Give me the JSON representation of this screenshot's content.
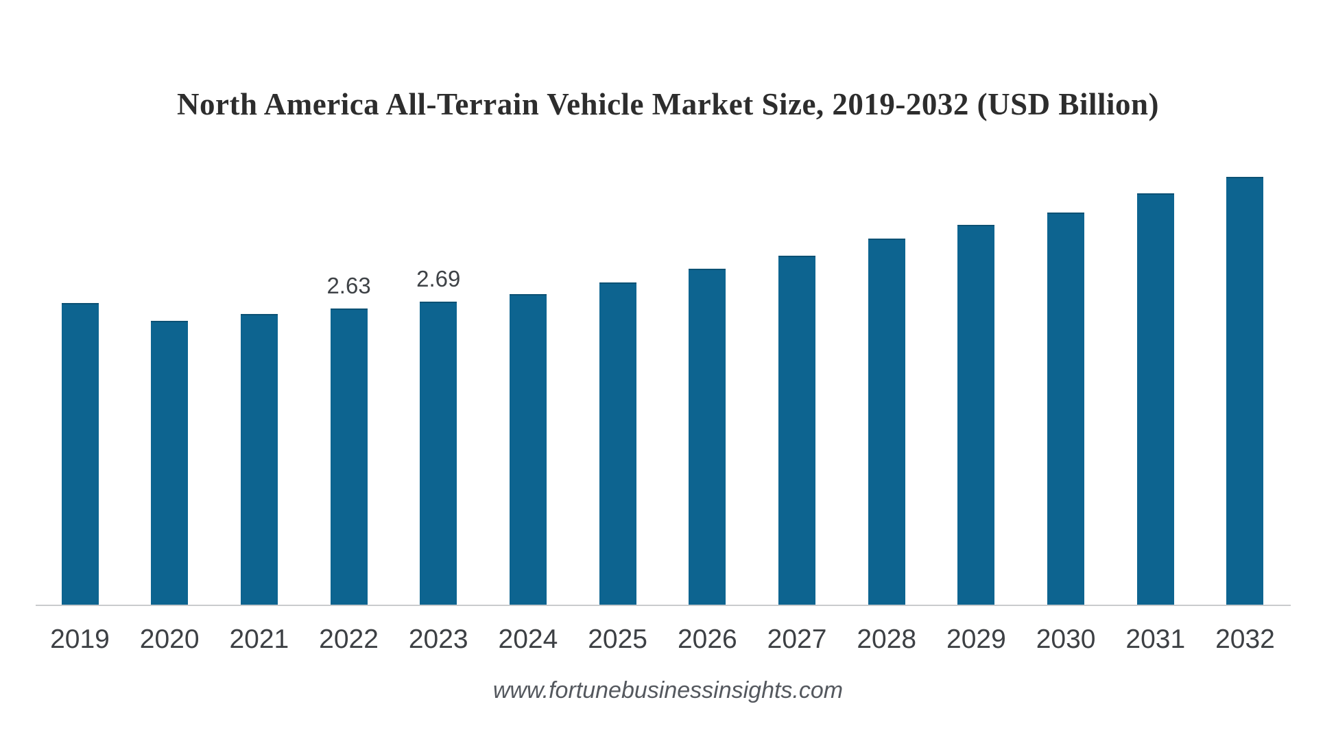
{
  "page": {
    "background": "#ffffff",
    "source_text": "www.fortunebusinessinsights.com"
  },
  "chart_data": {
    "type": "bar",
    "title": "North America All-Terrain Vehicle Market Size, 2019-2032 (USD Billion)",
    "unit": "USD Billion",
    "categories": [
      "2019",
      "2020",
      "2021",
      "2022",
      "2023",
      "2024",
      "2025",
      "2026",
      "2027",
      "2028",
      "2029",
      "2030",
      "2031",
      "2032"
    ],
    "values": [
      2.68,
      2.52,
      2.58,
      2.63,
      2.69,
      2.76,
      2.86,
      2.98,
      3.1,
      3.25,
      3.37,
      3.48,
      3.65,
      3.8
    ],
    "data_labels": {
      "2022": "2.63",
      "2023": "2.69"
    },
    "bar_color": "#0d6490",
    "axis_line_color": "#c9cbcd",
    "label_color": "#3d4044",
    "ylim": [
      0,
      4.25
    ],
    "grid": false,
    "legend": false,
    "y_axis_visible": false
  }
}
